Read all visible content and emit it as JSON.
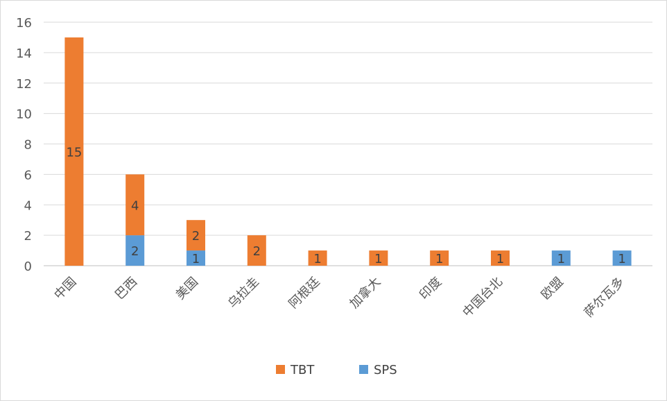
{
  "chart_data": {
    "type": "bar",
    "stacked": true,
    "categories": [
      "中国",
      "巴西",
      "美国",
      "乌拉圭",
      "阿根廷",
      "加拿大",
      "印度",
      "中国台北",
      "欧盟",
      "萨尔瓦多"
    ],
    "series": [
      {
        "name": "SPS",
        "color": "#5b9bd5",
        "values": [
          0,
          2,
          1,
          0,
          0,
          0,
          0,
          0,
          1,
          1
        ]
      },
      {
        "name": "TBT",
        "color": "#ed7d31",
        "values": [
          15,
          4,
          2,
          2,
          1,
          1,
          1,
          1,
          0,
          0
        ]
      }
    ],
    "legend_order": [
      "TBT",
      "SPS"
    ],
    "legend_position": "bottom",
    "ylim": [
      0,
      16
    ],
    "yticks": [
      "0",
      "2",
      "4",
      "6",
      "8",
      "10",
      "12",
      "14",
      "16"
    ],
    "grid": true,
    "title": "",
    "xlabel": "",
    "ylabel": ""
  }
}
